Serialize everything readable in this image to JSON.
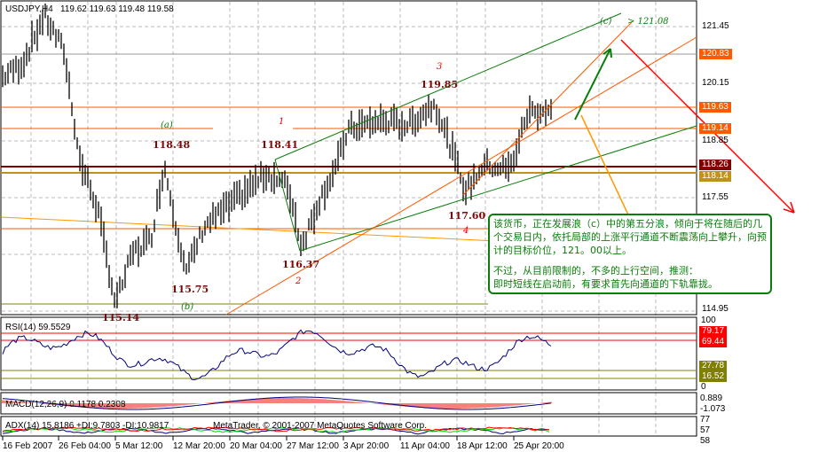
{
  "header": {
    "symbol": "USDJPY,H4",
    "ohlc": "119.62 119.63 119.48 119.58"
  },
  "price_axis": {
    "ticks": [
      "121.45",
      "120.15",
      "118.85",
      "117.55",
      "114.95"
    ],
    "tags": [
      {
        "value": "120.83",
        "color": "#ff5a00"
      },
      {
        "value": "119.63",
        "color": "#ff5a00"
      },
      {
        "value": "119.14",
        "color": "#ff5a00"
      },
      {
        "value": "118.26",
        "color": "#800000"
      },
      {
        "value": "118.14",
        "color": "#c09020"
      }
    ]
  },
  "labels": {
    "p1": "118.48",
    "p2": "118.41",
    "p3": "119.85",
    "p4": "117.60",
    "p5": "116.37",
    "p6": "115.75",
    "p7": "115.14",
    "w_a": "(a)",
    "w_b": "(b)",
    "w_c": "(c)",
    "target": "> 121.08",
    "n1": "1",
    "n2": "2",
    "n3": "3",
    "n4": "4"
  },
  "rsi": {
    "title": "RSI(14) 59.5529",
    "ticks": [
      "100",
      "0"
    ],
    "tags_red": [
      "79.17",
      "69.44"
    ],
    "tags_olive": [
      "27.78",
      "16.52"
    ]
  },
  "macd": {
    "title": "MACD(12,26,9) 0.1178 0.2308",
    "ticks": [
      "0.889",
      "-1.073"
    ]
  },
  "adx": {
    "title": "ADX(14) 15.8186 +DI:9.7803 -DI:10.9817",
    "copyright": "MetaTrader, © 2001-2007 MetaQuotes Software Corp.",
    "ticks": [
      "77",
      "57",
      "58"
    ]
  },
  "time_axis": [
    "16 Feb 2007",
    "26 Feb 04:00",
    "5 Mar 12:00",
    "12 Mar 20:00",
    "20 Mar 04:00",
    "27 Mar 12:00",
    "3 Apr 20:00",
    "11 Apr 04:00",
    "18 Apr 12:00",
    "25 Apr 20:00"
  ],
  "note": {
    "para1": "该货币，正在发展浪（c）中的第五分浪，倾向于将在随后的几个交易日内，依托局部的上涨平行通道不断震荡向上攀升，向预计的目标价位，121。00以上。",
    "para2a": "不过，从目前限制的，不多的上行空间，推测：",
    "para2b": "即时短线在启动前，有要求首先向通道的下轨靠拢。"
  },
  "colors": {
    "bull_line": "#0a7d0a",
    "bear_arrow": "#ff0000",
    "channel": "#ff5a00"
  }
}
